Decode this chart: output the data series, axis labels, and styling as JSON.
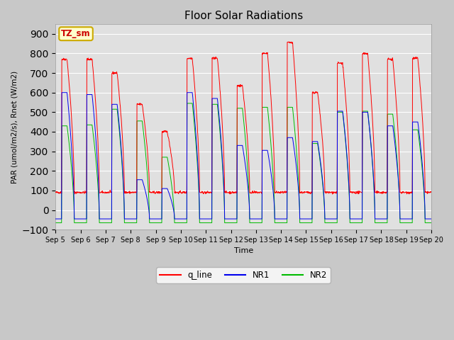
{
  "title": "Floor Solar Radiations",
  "xlabel": "Time",
  "ylabel": "PAR (umol/m2/s), Rnet (W/m2)",
  "ylim": [
    -100,
    950
  ],
  "yticks": [
    -100,
    0,
    100,
    200,
    300,
    400,
    500,
    600,
    700,
    800,
    900
  ],
  "n_days": 15,
  "points_per_day": 96,
  "fig_bg_color": "#c8c8c8",
  "plot_bg_color": "#e0e0e0",
  "grid_color": "#ffffff",
  "label_box_color": "#ffffcc",
  "label_box_edge": "#ccaa00",
  "label_text": "TZ_sm",
  "label_text_color": "#cc0000",
  "series": {
    "q_line": {
      "color": "#ff0000",
      "label": "q_line",
      "night_val": 90,
      "day_peak_vals": [
        770,
        770,
        700,
        540,
        400,
        775,
        775,
        635,
        800,
        855,
        600,
        750,
        800,
        770,
        775
      ],
      "zorder": 3
    },
    "NR1": {
      "color": "#0000ee",
      "label": "NR1",
      "night_val": -45,
      "day_peak_vals": [
        600,
        590,
        540,
        155,
        110,
        600,
        570,
        330,
        305,
        370,
        350,
        505,
        500,
        430,
        450
      ],
      "zorder": 4
    },
    "NR2": {
      "color": "#00bb00",
      "label": "NR2",
      "night_val": -65,
      "day_peak_vals": [
        430,
        435,
        515,
        455,
        270,
        545,
        540,
        520,
        525,
        525,
        340,
        500,
        505,
        490,
        410
      ],
      "zorder": 2
    }
  }
}
